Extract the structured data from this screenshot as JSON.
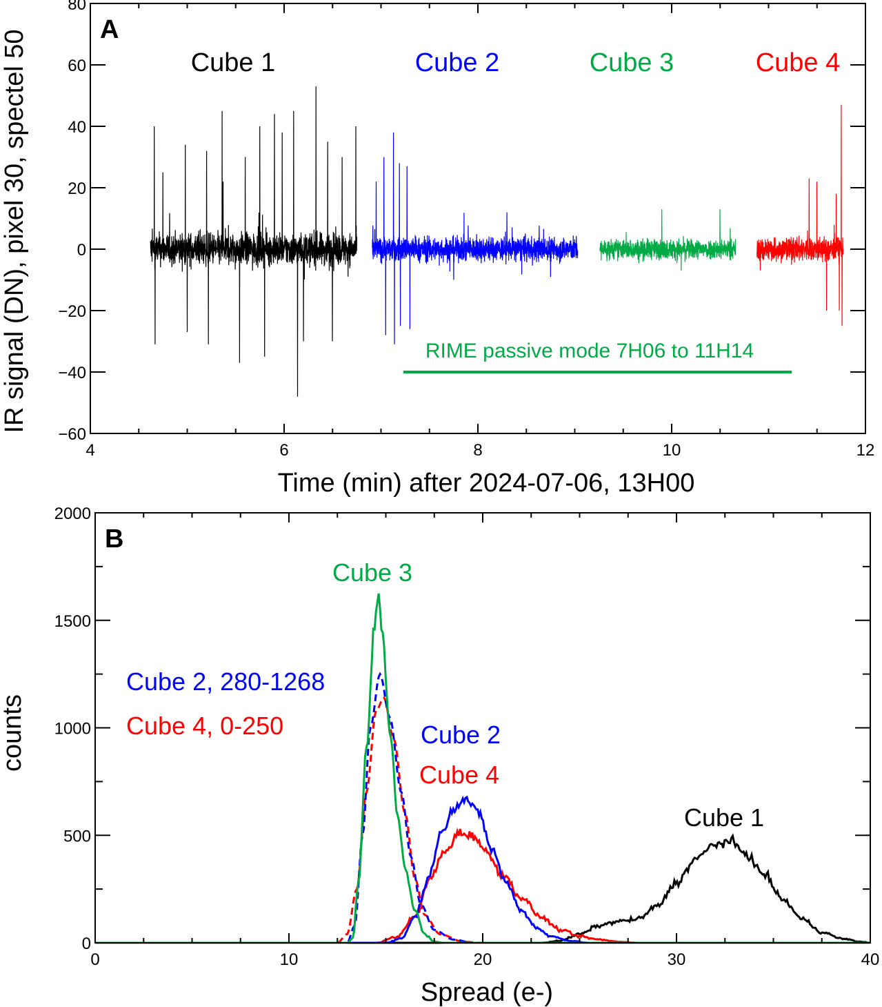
{
  "chart_data": [
    {
      "type": "line",
      "panel_label": "A",
      "xlabel": "Time (min) after 2024-07-06, 13H00",
      "ylabel": "IR signal (DN), pixel 30, spectel 50",
      "xlim": [
        4,
        12
      ],
      "ylim": [
        -60,
        80
      ],
      "xticks": [
        "4",
        "6",
        "8",
        "10",
        "12"
      ],
      "yticks": [
        "80",
        "60",
        "40",
        "20",
        "0",
        "−20",
        "−40",
        "−60"
      ],
      "series": [
        {
          "name": "Cube 1",
          "color": "#000000",
          "t_start": 4.62,
          "t_end": 6.75,
          "noise_amplitude": 8,
          "spikes": [
            [
              4.66,
              40
            ],
            [
              4.67,
              -31
            ],
            [
              4.75,
              25
            ],
            [
              4.98,
              34
            ],
            [
              5.0,
              -27
            ],
            [
              5.2,
              32
            ],
            [
              5.22,
              -31
            ],
            [
              5.36,
              45
            ],
            [
              5.37,
              22
            ],
            [
              5.54,
              -37
            ],
            [
              5.6,
              30
            ],
            [
              5.75,
              40
            ],
            [
              5.8,
              -35
            ],
            [
              5.9,
              44
            ],
            [
              5.98,
              38
            ],
            [
              6.1,
              45
            ],
            [
              6.14,
              -48
            ],
            [
              6.2,
              -30
            ],
            [
              6.33,
              53
            ],
            [
              6.45,
              35
            ],
            [
              6.5,
              -30
            ],
            [
              6.6,
              30
            ],
            [
              6.74,
              40
            ]
          ]
        },
        {
          "name": "Cube 2",
          "color": "#0000ff",
          "t_start": 6.91,
          "t_end": 9.03,
          "noise_amplitude": 6,
          "spikes": [
            [
              6.95,
              22
            ],
            [
              7.03,
              30
            ],
            [
              7.05,
              -28
            ],
            [
              7.13,
              38
            ],
            [
              7.14,
              -31
            ],
            [
              7.19,
              28
            ],
            [
              7.2,
              -25
            ],
            [
              7.27,
              27
            ],
            [
              7.3,
              -26
            ],
            [
              7.75,
              -10
            ],
            [
              8.3,
              12
            ],
            [
              8.75,
              -9
            ]
          ]
        },
        {
          "name": "Cube 3",
          "color": "#00aa44",
          "t_start": 9.26,
          "t_end": 10.66,
          "noise_amplitude": 5,
          "spikes": [
            [
              9.9,
              13
            ],
            [
              10.5,
              13
            ],
            [
              10.1,
              -7
            ]
          ]
        },
        {
          "name": "Cube 4",
          "color": "#ff0000",
          "t_start": 10.88,
          "t_end": 11.77,
          "noise_amplitude": 6,
          "spikes": [
            [
              11.42,
              23
            ],
            [
              11.5,
              22
            ],
            [
              11.6,
              -20
            ],
            [
              11.7,
              18
            ],
            [
              11.75,
              47
            ],
            [
              11.76,
              -25
            ],
            [
              11.73,
              -20
            ]
          ]
        }
      ],
      "annotation": {
        "text": "RIME passive mode 7H06 to 11H14",
        "color": "#00aa44",
        "t_start": 7.23,
        "t_end": 11.24,
        "y": -40
      }
    },
    {
      "type": "line",
      "panel_label": "B",
      "xlabel": "Spread (e-)",
      "ylabel": "counts",
      "xlim": [
        0,
        40
      ],
      "ylim": [
        0,
        2000
      ],
      "xticks": [
        "0",
        "10",
        "20",
        "30",
        "40"
      ],
      "yticks": [
        "2000",
        "1500",
        "1000",
        "500",
        "0"
      ],
      "legend_labels": [
        {
          "text": "Cube 3",
          "color": "#00aa44"
        },
        {
          "text": "Cube 2, 280-1268",
          "color": "#0000ff"
        },
        {
          "text": "Cube 4, 0-250",
          "color": "#ff0000"
        },
        {
          "text": "Cube 2",
          "color": "#0000ff"
        },
        {
          "text": "Cube 4",
          "color": "#ff0000"
        },
        {
          "text": "Cube 1",
          "color": "#000000"
        }
      ],
      "series": [
        {
          "name": "Cube 1",
          "color": "#000000",
          "dashed": false,
          "points": [
            [
              0,
              0
            ],
            [
              23,
              0
            ],
            [
              24,
              10
            ],
            [
              25,
              40
            ],
            [
              26,
              80
            ],
            [
              27,
              100
            ],
            [
              28,
              110
            ],
            [
              29,
              170
            ],
            [
              30,
              280
            ],
            [
              31,
              390
            ],
            [
              32,
              460
            ],
            [
              32.8,
              470
            ],
            [
              33.5,
              420
            ],
            [
              34.5,
              320
            ],
            [
              35.5,
              200
            ],
            [
              36.5,
              110
            ],
            [
              37.5,
              50
            ],
            [
              38.5,
              20
            ],
            [
              39.5,
              5
            ],
            [
              40,
              0
            ]
          ]
        },
        {
          "name": "Cube 4",
          "color": "#ff0000",
          "dashed": false,
          "points": [
            [
              0,
              0
            ],
            [
              14.5,
              0
            ],
            [
              15.5,
              25
            ],
            [
              16.5,
              120
            ],
            [
              17.3,
              300
            ],
            [
              18,
              420
            ],
            [
              18.8,
              510
            ],
            [
              19.5,
              500
            ],
            [
              20.2,
              420
            ],
            [
              21,
              320
            ],
            [
              22,
              210
            ],
            [
              23,
              120
            ],
            [
              24,
              60
            ],
            [
              25,
              30
            ],
            [
              26,
              15
            ],
            [
              27,
              5
            ],
            [
              28,
              0
            ],
            [
              40,
              0
            ]
          ]
        },
        {
          "name": "Cube 2",
          "color": "#0000ff",
          "dashed": false,
          "points": [
            [
              0,
              0
            ],
            [
              15,
              0
            ],
            [
              15.8,
              20
            ],
            [
              16.5,
              120
            ],
            [
              17.2,
              300
            ],
            [
              17.8,
              500
            ],
            [
              18.5,
              630
            ],
            [
              19.1,
              670
            ],
            [
              19.8,
              600
            ],
            [
              20.5,
              430
            ],
            [
              21.2,
              280
            ],
            [
              22,
              150
            ],
            [
              22.8,
              70
            ],
            [
              23.5,
              30
            ],
            [
              24.5,
              10
            ],
            [
              25.5,
              0
            ],
            [
              40,
              0
            ]
          ]
        },
        {
          "name": "Cube 4, 0-250",
          "color": "#ff0000",
          "dashed": true,
          "points": [
            [
              0,
              0
            ],
            [
              12.5,
              0
            ],
            [
              13,
              40
            ],
            [
              13.5,
              250
            ],
            [
              14,
              700
            ],
            [
              14.5,
              1080
            ],
            [
              14.9,
              1140
            ],
            [
              15.4,
              950
            ],
            [
              16,
              600
            ],
            [
              16.5,
              300
            ],
            [
              17,
              130
            ],
            [
              17.8,
              40
            ],
            [
              19,
              5
            ],
            [
              20,
              0
            ],
            [
              40,
              0
            ]
          ]
        },
        {
          "name": "Cube 2, 280-1268",
          "color": "#0000ff",
          "dashed": true,
          "points": [
            [
              0,
              0
            ],
            [
              13,
              0
            ],
            [
              13.4,
              80
            ],
            [
              13.8,
              500
            ],
            [
              14.2,
              1000
            ],
            [
              14.7,
              1250
            ],
            [
              15.2,
              1050
            ],
            [
              15.8,
              700
            ],
            [
              16.3,
              400
            ],
            [
              16.8,
              180
            ],
            [
              17.5,
              60
            ],
            [
              18.5,
              15
            ],
            [
              19.5,
              0
            ],
            [
              40,
              0
            ]
          ]
        },
        {
          "name": "Cube 3",
          "color": "#00aa44",
          "dashed": false,
          "points": [
            [
              0,
              0
            ],
            [
              13,
              0
            ],
            [
              13.3,
              20
            ],
            [
              13.6,
              300
            ],
            [
              14.0,
              900
            ],
            [
              14.4,
              1450
            ],
            [
              14.6,
              1610
            ],
            [
              14.8,
              1450
            ],
            [
              15.2,
              1000
            ],
            [
              15.6,
              600
            ],
            [
              16.0,
              350
            ],
            [
              16.5,
              150
            ],
            [
              17.0,
              40
            ],
            [
              17.5,
              5
            ],
            [
              18,
              0
            ],
            [
              40,
              0
            ]
          ]
        }
      ]
    }
  ]
}
